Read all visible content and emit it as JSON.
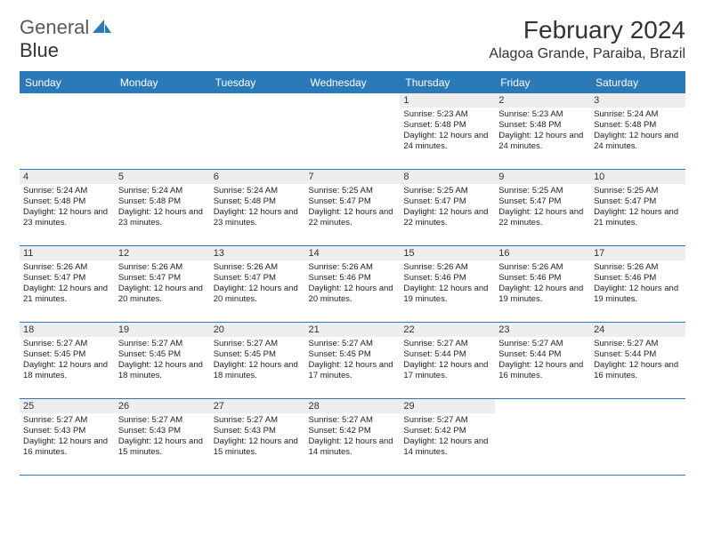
{
  "logo": {
    "text1": "General",
    "text2": "Blue"
  },
  "title": "February 2024",
  "location": "Alagoa Grande, Paraiba, Brazil",
  "colors": {
    "header_bg": "#2a7ab9",
    "header_text": "#ffffff",
    "daynum_bg": "#eeeeee",
    "border": "#2a7ab9",
    "logo_gray": "#5a5a5a",
    "logo_blue": "#2a7ab9"
  },
  "weekdays": [
    "Sunday",
    "Monday",
    "Tuesday",
    "Wednesday",
    "Thursday",
    "Friday",
    "Saturday"
  ],
  "weeks": [
    [
      null,
      null,
      null,
      null,
      {
        "n": "1",
        "sr": "5:23 AM",
        "ss": "5:48 PM",
        "dl": "12 hours and 24 minutes."
      },
      {
        "n": "2",
        "sr": "5:23 AM",
        "ss": "5:48 PM",
        "dl": "12 hours and 24 minutes."
      },
      {
        "n": "3",
        "sr": "5:24 AM",
        "ss": "5:48 PM",
        "dl": "12 hours and 24 minutes."
      }
    ],
    [
      {
        "n": "4",
        "sr": "5:24 AM",
        "ss": "5:48 PM",
        "dl": "12 hours and 23 minutes."
      },
      {
        "n": "5",
        "sr": "5:24 AM",
        "ss": "5:48 PM",
        "dl": "12 hours and 23 minutes."
      },
      {
        "n": "6",
        "sr": "5:24 AM",
        "ss": "5:48 PM",
        "dl": "12 hours and 23 minutes."
      },
      {
        "n": "7",
        "sr": "5:25 AM",
        "ss": "5:47 PM",
        "dl": "12 hours and 22 minutes."
      },
      {
        "n": "8",
        "sr": "5:25 AM",
        "ss": "5:47 PM",
        "dl": "12 hours and 22 minutes."
      },
      {
        "n": "9",
        "sr": "5:25 AM",
        "ss": "5:47 PM",
        "dl": "12 hours and 22 minutes."
      },
      {
        "n": "10",
        "sr": "5:25 AM",
        "ss": "5:47 PM",
        "dl": "12 hours and 21 minutes."
      }
    ],
    [
      {
        "n": "11",
        "sr": "5:26 AM",
        "ss": "5:47 PM",
        "dl": "12 hours and 21 minutes."
      },
      {
        "n": "12",
        "sr": "5:26 AM",
        "ss": "5:47 PM",
        "dl": "12 hours and 20 minutes."
      },
      {
        "n": "13",
        "sr": "5:26 AM",
        "ss": "5:47 PM",
        "dl": "12 hours and 20 minutes."
      },
      {
        "n": "14",
        "sr": "5:26 AM",
        "ss": "5:46 PM",
        "dl": "12 hours and 20 minutes."
      },
      {
        "n": "15",
        "sr": "5:26 AM",
        "ss": "5:46 PM",
        "dl": "12 hours and 19 minutes."
      },
      {
        "n": "16",
        "sr": "5:26 AM",
        "ss": "5:46 PM",
        "dl": "12 hours and 19 minutes."
      },
      {
        "n": "17",
        "sr": "5:26 AM",
        "ss": "5:46 PM",
        "dl": "12 hours and 19 minutes."
      }
    ],
    [
      {
        "n": "18",
        "sr": "5:27 AM",
        "ss": "5:45 PM",
        "dl": "12 hours and 18 minutes."
      },
      {
        "n": "19",
        "sr": "5:27 AM",
        "ss": "5:45 PM",
        "dl": "12 hours and 18 minutes."
      },
      {
        "n": "20",
        "sr": "5:27 AM",
        "ss": "5:45 PM",
        "dl": "12 hours and 18 minutes."
      },
      {
        "n": "21",
        "sr": "5:27 AM",
        "ss": "5:45 PM",
        "dl": "12 hours and 17 minutes."
      },
      {
        "n": "22",
        "sr": "5:27 AM",
        "ss": "5:44 PM",
        "dl": "12 hours and 17 minutes."
      },
      {
        "n": "23",
        "sr": "5:27 AM",
        "ss": "5:44 PM",
        "dl": "12 hours and 16 minutes."
      },
      {
        "n": "24",
        "sr": "5:27 AM",
        "ss": "5:44 PM",
        "dl": "12 hours and 16 minutes."
      }
    ],
    [
      {
        "n": "25",
        "sr": "5:27 AM",
        "ss": "5:43 PM",
        "dl": "12 hours and 16 minutes."
      },
      {
        "n": "26",
        "sr": "5:27 AM",
        "ss": "5:43 PM",
        "dl": "12 hours and 15 minutes."
      },
      {
        "n": "27",
        "sr": "5:27 AM",
        "ss": "5:43 PM",
        "dl": "12 hours and 15 minutes."
      },
      {
        "n": "28",
        "sr": "5:27 AM",
        "ss": "5:42 PM",
        "dl": "12 hours and 14 minutes."
      },
      {
        "n": "29",
        "sr": "5:27 AM",
        "ss": "5:42 PM",
        "dl": "12 hours and 14 minutes."
      },
      null,
      null
    ]
  ],
  "labels": {
    "sunrise": "Sunrise: ",
    "sunset": "Sunset: ",
    "daylight": "Daylight: "
  }
}
